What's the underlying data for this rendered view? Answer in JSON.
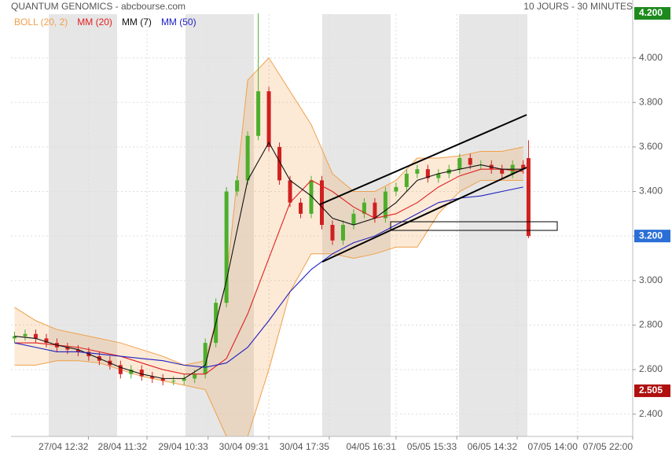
{
  "chart_data": {
    "type": "candlestick",
    "title": "QUANTUM GENOMICS - abcbourse.com",
    "subtitle": "10 JOURS - 30 MINUTES",
    "xlim": [
      0,
      176
    ],
    "ylim": [
      2.3,
      4.26
    ],
    "yticks": [
      {
        "value": 2.4,
        "label": "2.400"
      },
      {
        "value": 2.6,
        "label": "2.600"
      },
      {
        "value": 2.8,
        "label": "2.800"
      },
      {
        "value": 3.0,
        "label": "3.000"
      },
      {
        "value": 3.2,
        "label": "3.200"
      },
      {
        "value": 3.4,
        "label": "3.400"
      },
      {
        "value": 3.6,
        "label": "3.600"
      },
      {
        "value": 3.8,
        "label": "3.800"
      },
      {
        "value": 4.0,
        "label": "4.000"
      }
    ],
    "xticks": [
      {
        "value": 21.9,
        "label": "27/04 12:32"
      },
      {
        "value": 38.5,
        "label": "28/04 11:32"
      },
      {
        "value": 55.8,
        "label": "29/04 10:33"
      },
      {
        "value": 73.0,
        "label": "30/04 09:31"
      },
      {
        "value": 90.1,
        "label": "30/04 17:35"
      },
      {
        "value": 109.0,
        "label": "04/05 16:31"
      },
      {
        "value": 126.2,
        "label": "05/05 15:33"
      },
      {
        "value": 143.3,
        "label": "06/05 14:32"
      },
      {
        "value": 160.4,
        "label": "07/05 14:00"
      },
      {
        "value": 176.0,
        "label": "07/05 22:00"
      }
    ],
    "grid": true,
    "up_color": "#4caf2a",
    "down_color": "#d02020",
    "candles": {
      "x": [
        1,
        4,
        7,
        10,
        13,
        16,
        19,
        22,
        25,
        28,
        31,
        34,
        37,
        40,
        43,
        46,
        49,
        52,
        55,
        58,
        61,
        64,
        67,
        70,
        73,
        76,
        79,
        82,
        85,
        88,
        91,
        94,
        97,
        100,
        103,
        106,
        109,
        112,
        115,
        118,
        121,
        124,
        127,
        130,
        133,
        136,
        139,
        142,
        145,
        146.5
      ],
      "open": [
        2.74,
        2.75,
        2.76,
        2.74,
        2.72,
        2.7,
        2.69,
        2.68,
        2.66,
        2.64,
        2.62,
        2.58,
        2.6,
        2.57,
        2.56,
        2.55,
        2.55,
        2.56,
        2.58,
        2.72,
        2.9,
        3.4,
        3.45,
        3.65,
        3.85,
        3.6,
        3.45,
        3.35,
        3.3,
        3.45,
        3.25,
        3.18,
        3.25,
        3.3,
        3.35,
        3.28,
        3.4,
        3.42,
        3.48,
        3.5,
        3.46,
        3.48,
        3.5,
        3.55,
        3.52,
        3.52,
        3.5,
        3.48,
        3.52,
        3.55
      ],
      "high": [
        2.77,
        2.78,
        2.78,
        2.76,
        2.74,
        2.72,
        2.71,
        2.7,
        2.68,
        2.66,
        2.64,
        2.62,
        2.62,
        2.59,
        2.58,
        2.57,
        2.58,
        2.6,
        2.74,
        2.92,
        3.42,
        3.47,
        3.67,
        4.2,
        3.87,
        3.62,
        3.47,
        3.37,
        3.47,
        3.47,
        3.27,
        3.27,
        3.32,
        3.37,
        3.37,
        3.42,
        3.44,
        3.5,
        3.52,
        3.52,
        3.5,
        3.52,
        3.57,
        3.57,
        3.54,
        3.54,
        3.52,
        3.54,
        3.54,
        3.63
      ],
      "low": [
        2.72,
        2.73,
        2.72,
        2.7,
        2.68,
        2.67,
        2.66,
        2.64,
        2.62,
        2.6,
        2.56,
        2.56,
        2.55,
        2.54,
        2.53,
        2.53,
        2.53,
        2.54,
        2.56,
        2.7,
        2.88,
        3.38,
        3.43,
        3.63,
        3.58,
        3.43,
        3.33,
        3.28,
        3.28,
        3.23,
        3.16,
        3.16,
        3.23,
        3.28,
        3.26,
        3.26,
        3.38,
        3.4,
        3.46,
        3.44,
        3.44,
        3.46,
        3.48,
        3.5,
        3.5,
        3.48,
        3.46,
        3.46,
        3.48,
        3.19
      ],
      "close": [
        2.75,
        2.76,
        2.74,
        2.72,
        2.7,
        2.69,
        2.68,
        2.66,
        2.64,
        2.62,
        2.58,
        2.6,
        2.57,
        2.56,
        2.55,
        2.55,
        2.56,
        2.58,
        2.72,
        2.9,
        3.4,
        3.45,
        3.65,
        3.85,
        3.6,
        3.45,
        3.35,
        3.3,
        3.45,
        3.25,
        3.18,
        3.25,
        3.3,
        3.35,
        3.28,
        3.4,
        3.42,
        3.48,
        3.5,
        3.46,
        3.48,
        3.5,
        3.55,
        3.52,
        3.52,
        3.5,
        3.48,
        3.52,
        3.5,
        3.2
      ]
    },
    "lines_x": [
      1,
      7,
      13,
      19,
      25,
      31,
      37,
      43,
      49,
      55,
      61,
      67,
      73,
      79,
      85,
      91,
      97,
      103,
      109,
      115,
      121,
      127,
      133,
      139,
      145
    ],
    "bollinger": {
      "name": "BOLL (20, 2)",
      "color": "#f0a04b",
      "upper": [
        2.88,
        2.82,
        2.78,
        2.76,
        2.74,
        2.72,
        2.69,
        2.66,
        2.62,
        2.64,
        3.0,
        3.9,
        4.0,
        3.85,
        3.7,
        3.48,
        3.4,
        3.4,
        3.45,
        3.55,
        3.55,
        3.56,
        3.58,
        3.58,
        3.6
      ],
      "lower": [
        2.62,
        2.62,
        2.64,
        2.64,
        2.63,
        2.6,
        2.57,
        2.55,
        2.53,
        2.51,
        2.3,
        2.3,
        2.6,
        2.95,
        3.12,
        3.12,
        3.1,
        3.12,
        3.15,
        3.15,
        3.3,
        3.4,
        3.45,
        3.45,
        3.45
      ]
    },
    "series": [
      {
        "name": "MM (20)",
        "color": "#e02020",
        "values": [
          2.72,
          2.72,
          2.71,
          2.7,
          2.68,
          2.66,
          2.63,
          2.6,
          2.58,
          2.58,
          2.65,
          2.85,
          3.1,
          3.35,
          3.45,
          3.4,
          3.33,
          3.28,
          3.3,
          3.35,
          3.42,
          3.47,
          3.5,
          3.5,
          3.49
        ]
      },
      {
        "name": "MM (7)",
        "color": "#111111",
        "values": [
          2.75,
          2.74,
          2.71,
          2.69,
          2.65,
          2.61,
          2.58,
          2.56,
          2.56,
          2.62,
          3.0,
          3.45,
          3.62,
          3.45,
          3.38,
          3.28,
          3.25,
          3.28,
          3.35,
          3.45,
          3.48,
          3.5,
          3.52,
          3.5,
          3.5
        ]
      },
      {
        "name": "MM (50)",
        "color": "#2020c0",
        "values": [
          2.72,
          2.7,
          2.68,
          2.68,
          2.67,
          2.66,
          2.65,
          2.64,
          2.62,
          2.61,
          2.63,
          2.7,
          2.82,
          2.95,
          3.05,
          3.12,
          3.17,
          3.2,
          3.25,
          3.3,
          3.35,
          3.37,
          3.38,
          3.4,
          3.42
        ]
      }
    ],
    "price_labels": [
      {
        "value": 4.2,
        "label": "4.200",
        "color": "#1e8a1e"
      },
      {
        "value": 3.2,
        "label": "3.200",
        "color": "#2b6fd6"
      },
      {
        "value": 2.505,
        "label": "2.505",
        "color": "#b01010"
      }
    ]
  }
}
